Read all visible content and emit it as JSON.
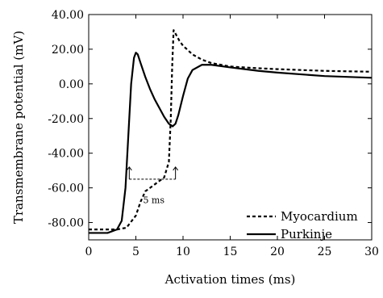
{
  "chart_data": {
    "type": "line",
    "xlabel": "Activation times (ms)",
    "ylabel": "Transmembrane potential (mV)",
    "xlim": [
      0,
      30
    ],
    "ylim": [
      -90,
      40
    ],
    "x_ticks": [
      0,
      5,
      10,
      15,
      20,
      25,
      30
    ],
    "y_ticks": [
      -80,
      -60,
      -40,
      -20,
      0,
      20,
      40
    ],
    "x_tick_labels": [
      "0",
      "5",
      "10",
      "15",
      "20",
      "25",
      "30"
    ],
    "y_tick_labels": [
      "-80.00",
      "-60.00",
      "-40.00",
      "-20.00",
      "0.00",
      "20.00",
      "40.00"
    ],
    "grid": false,
    "legend_position": "lower-right",
    "series": [
      {
        "name": "Myocardium",
        "style": "dashed",
        "color": "#000000",
        "x": [
          0,
          3,
          4,
          5,
          5.5,
          6,
          7,
          8,
          8.5,
          8.7,
          8.85,
          9.0,
          9.3,
          9.6,
          10,
          11,
          12,
          13,
          15,
          18,
          20,
          25,
          30
        ],
        "y": [
          -84,
          -84,
          -83,
          -76,
          -68,
          -62,
          -58,
          -54,
          -45,
          -20,
          10,
          31,
          28,
          25,
          22,
          17,
          14,
          12,
          10,
          9,
          8.5,
          7.5,
          7
        ]
      },
      {
        "name": "Purkinje",
        "style": "solid",
        "color": "#000000",
        "x": [
          0,
          2,
          3,
          3.5,
          3.9,
          4.2,
          4.5,
          4.8,
          5.0,
          5.2,
          5.5,
          6,
          6.5,
          7,
          7.5,
          8,
          8.5,
          8.9,
          9.2,
          9.5,
          10,
          10.5,
          11,
          12,
          13,
          15,
          18,
          20,
          25,
          30
        ],
        "y": [
          -86,
          -86,
          -84,
          -79,
          -60,
          -30,
          0,
          15,
          18,
          17,
          12,
          4,
          -3,
          -9,
          -14,
          -19,
          -23,
          -24.5,
          -23,
          -18,
          -7,
          3,
          8,
          11,
          11,
          9.5,
          7.5,
          6.5,
          4.5,
          3.5
        ]
      }
    ],
    "annotations": [
      {
        "text": "5 ms",
        "x": 6.9,
        "y": -67
      }
    ]
  },
  "legend": [
    {
      "label": "Myocardium"
    },
    {
      "label": "Purkinje"
    }
  ]
}
